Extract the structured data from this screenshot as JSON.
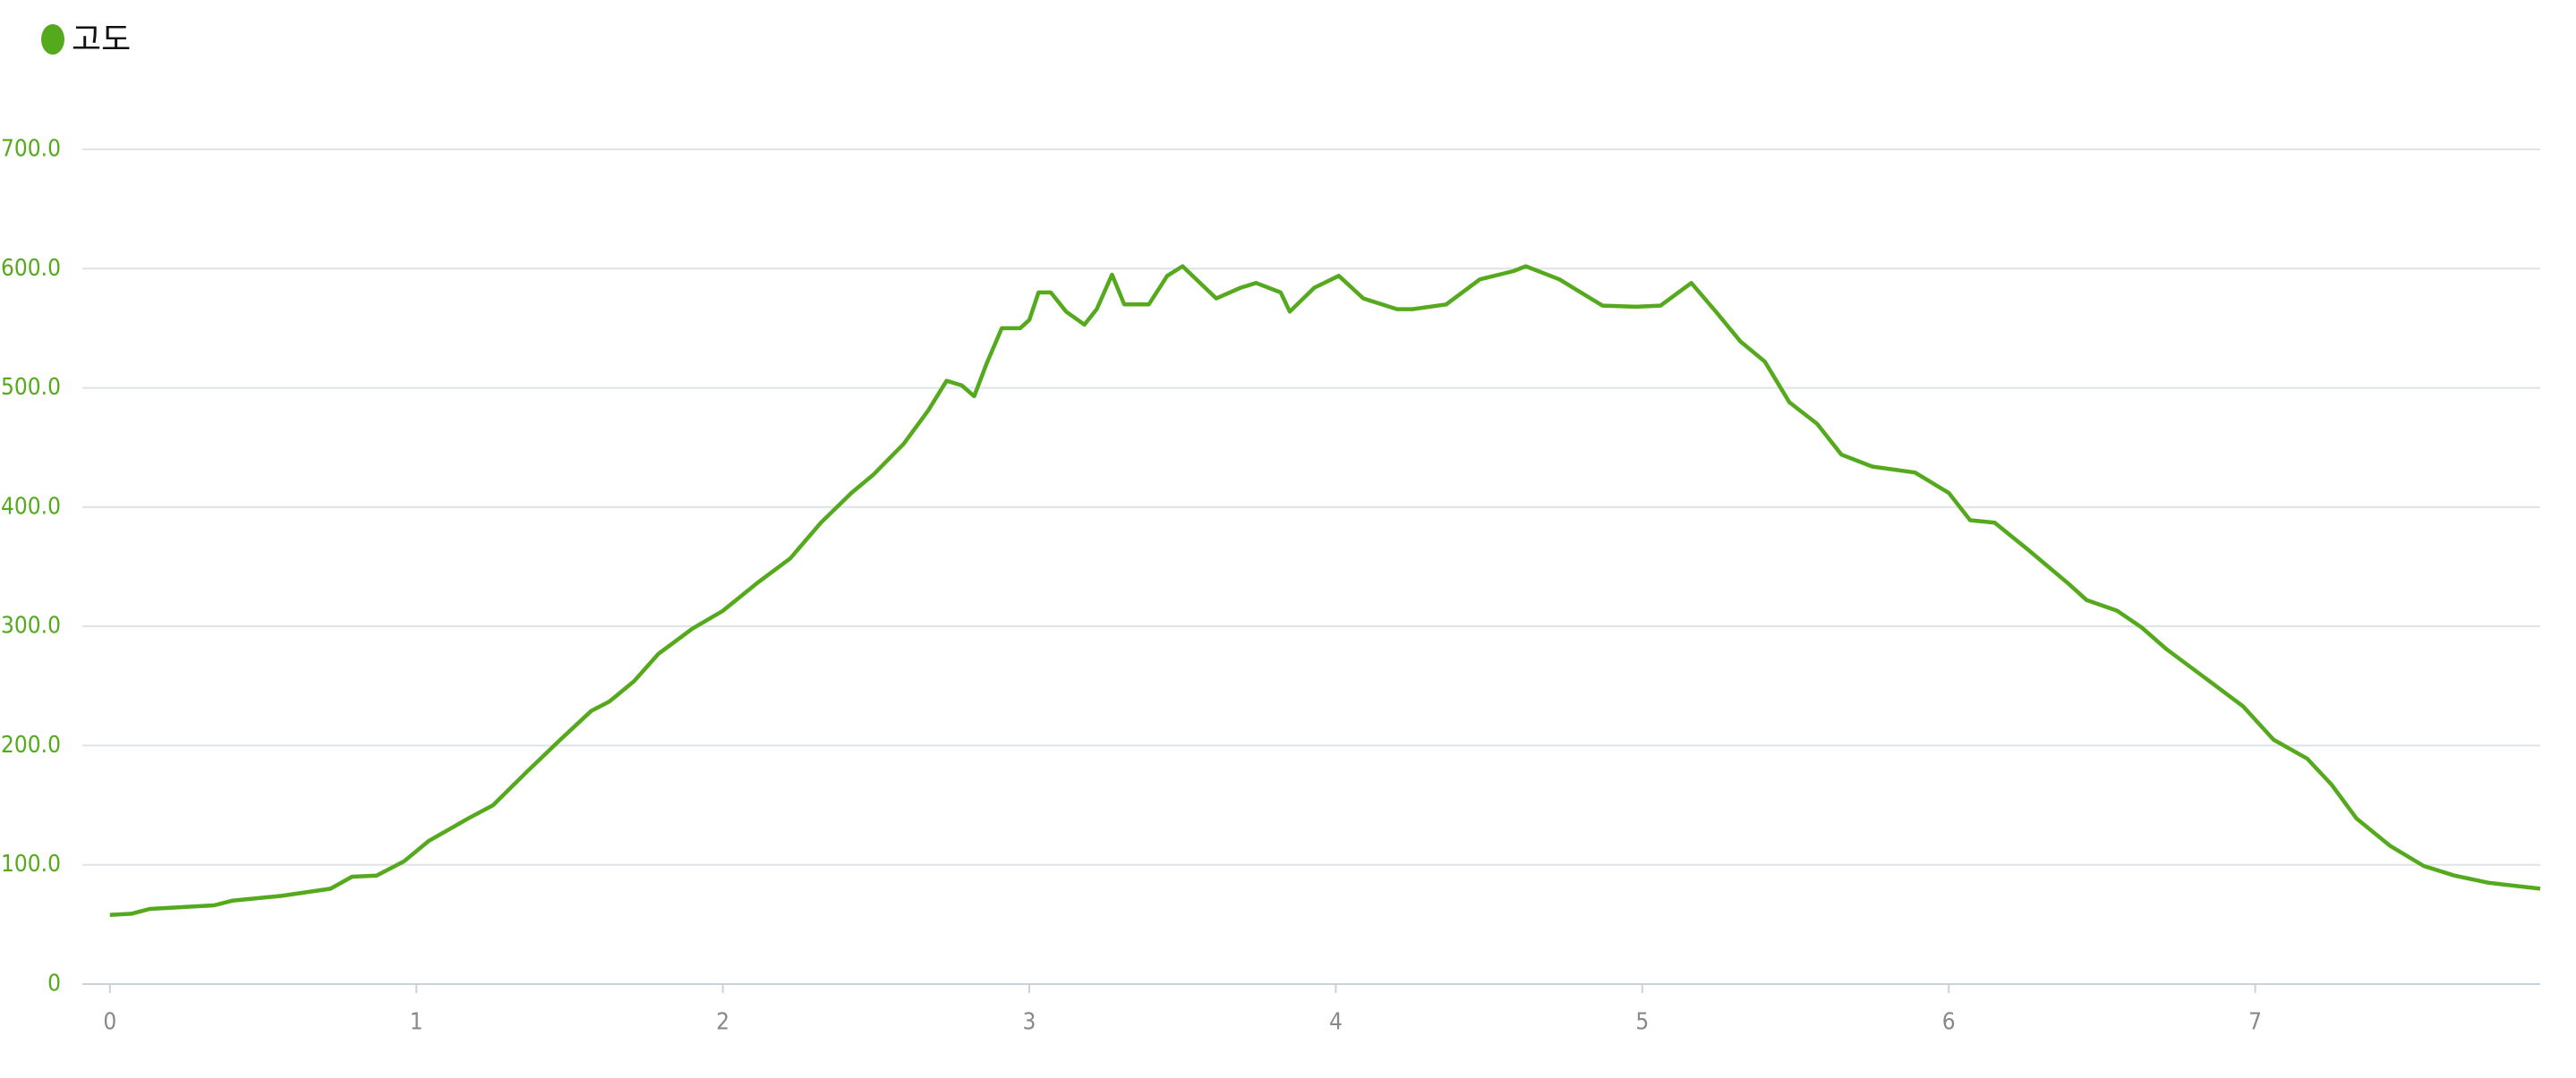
{
  "chart_data": {
    "type": "line",
    "x": [
      0,
      0.07,
      0.13,
      0.34,
      0.4,
      0.56,
      0.72,
      0.79,
      0.87,
      0.96,
      1.04,
      1.17,
      1.25,
      1.36,
      1.47,
      1.57,
      1.63,
      1.71,
      1.79,
      1.9,
      2.0,
      2.11,
      2.22,
      2.32,
      2.42,
      2.49,
      2.59,
      2.67,
      2.73,
      2.78,
      2.82,
      2.86,
      2.91,
      2.97,
      3.0,
      3.03,
      3.07,
      3.12,
      3.18,
      3.22,
      3.27,
      3.31,
      3.39,
      3.45,
      3.5,
      3.61,
      3.69,
      3.74,
      3.82,
      3.85,
      3.93,
      4.01,
      4.09,
      4.2,
      4.25,
      4.36,
      4.47,
      4.58,
      4.62,
      4.73,
      4.87,
      4.98,
      5.06,
      5.16,
      5.24,
      5.32,
      5.4,
      5.48,
      5.57,
      5.65,
      5.75,
      5.89,
      6.0,
      6.07,
      6.15,
      6.26,
      6.39,
      6.45,
      6.55,
      6.63,
      6.71,
      6.82,
      6.96,
      7.06,
      7.17,
      7.25,
      7.33,
      7.44,
      7.55,
      7.65,
      7.76,
      7.93
    ],
    "series": [
      {
        "name": "고도",
        "color": "#55a91c",
        "values": [
          58,
          59,
          63,
          66,
          70,
          74,
          80,
          90,
          91,
          103,
          120,
          139,
          150,
          178,
          205,
          229,
          237,
          254,
          277,
          298,
          313,
          336,
          357,
          387,
          412,
          427,
          453,
          481,
          506,
          502,
          493,
          520,
          550,
          550,
          557,
          580,
          580,
          564,
          553,
          566,
          595,
          570,
          570,
          594,
          602,
          575,
          584,
          588,
          580,
          564,
          584,
          594,
          575,
          566,
          566,
          570,
          591,
          598,
          602,
          591,
          569,
          568,
          569,
          588,
          564,
          539,
          522,
          488,
          470,
          444,
          434,
          429,
          412,
          389,
          387,
          364,
          336,
          322,
          313,
          299,
          281,
          260,
          233,
          205,
          189,
          167,
          139,
          116,
          99,
          91,
          85,
          80
        ]
      }
    ],
    "xlim": [
      -0.09,
      7.93
    ],
    "ylim": [
      0,
      700
    ],
    "xticks": [
      0,
      1,
      2,
      3,
      4,
      5,
      6,
      7
    ],
    "yticks": [
      0,
      {
        "value": 100,
        "label": "100.0"
      },
      {
        "value": 200,
        "label": "200.0"
      },
      {
        "value": 300,
        "label": "300.0"
      },
      {
        "value": 400,
        "label": "400.0"
      },
      {
        "value": 500,
        "label": "500.0"
      },
      {
        "value": 600,
        "label": "600.0"
      },
      {
        "value": 700,
        "label": "700.0"
      }
    ],
    "grid": true,
    "legend": "top-left"
  }
}
